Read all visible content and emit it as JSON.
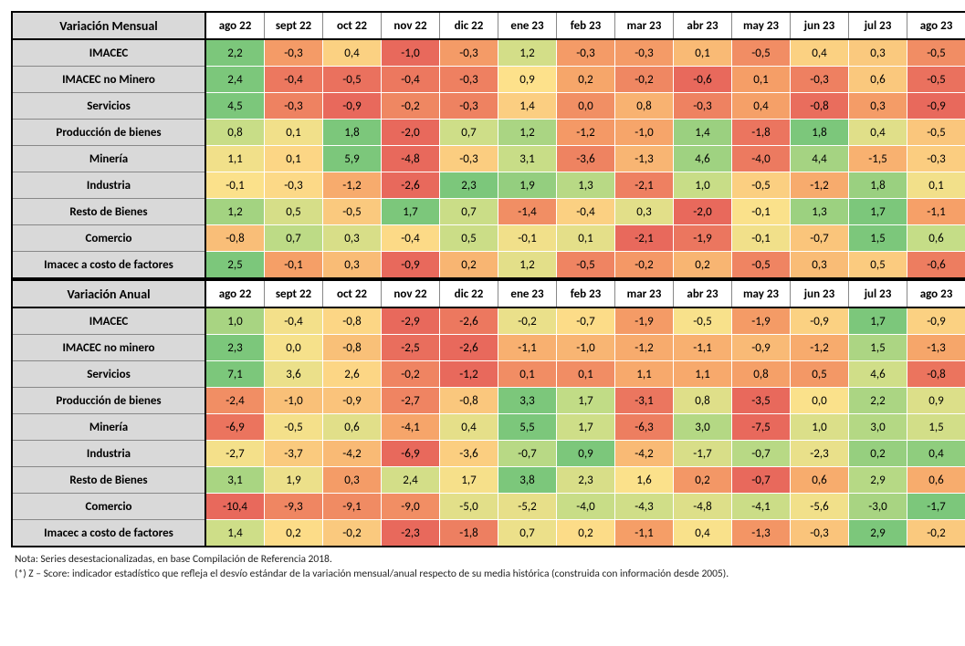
{
  "columns": [
    "ago 22",
    "sept 22",
    "oct 22",
    "nov 22",
    "dic 22",
    "ene 23",
    "feb 23",
    "mar 23",
    "abr 23",
    "may 23",
    "jun 23",
    "jul 23",
    "ago 23"
  ],
  "color_scale": {
    "stops": [
      {
        "t": 0.0,
        "c": "#e8695c"
      },
      {
        "t": 0.25,
        "c": "#f6a268"
      },
      {
        "t": 0.5,
        "c": "#fde18b"
      },
      {
        "t": 0.75,
        "c": "#c5dd87"
      },
      {
        "t": 1.0,
        "c": "#7cc77b"
      }
    ]
  },
  "tables": [
    {
      "title": "Variación Mensual",
      "rows": [
        {
          "label": "IMACEC",
          "v": [
            2.2,
            -0.3,
            0.4,
            -1.0,
            -0.3,
            1.2,
            -0.3,
            -0.3,
            0.1,
            -0.5,
            0.4,
            0.3,
            -0.5
          ]
        },
        {
          "label": "IMACEC no Minero",
          "v": [
            2.4,
            -0.4,
            -0.5,
            -0.4,
            -0.3,
            0.9,
            0.2,
            -0.2,
            -0.6,
            0.1,
            -0.3,
            0.6,
            -0.5
          ]
        },
        {
          "label": "Servicios",
          "v": [
            4.5,
            -0.3,
            -0.9,
            -0.2,
            -0.3,
            1.4,
            0.0,
            0.8,
            -0.3,
            0.4,
            -0.8,
            0.3,
            -0.9
          ]
        },
        {
          "label": "Producción de bienes",
          "v": [
            0.8,
            0.1,
            1.8,
            -2.0,
            0.7,
            1.2,
            -1.2,
            -1.0,
            1.4,
            -1.8,
            1.8,
            0.4,
            -0.5
          ]
        },
        {
          "label": "Minería",
          "v": [
            1.1,
            0.1,
            5.9,
            -4.8,
            -0.3,
            3.1,
            -3.6,
            -1.3,
            4.6,
            -4.0,
            4.4,
            -1.5,
            -0.3
          ]
        },
        {
          "label": "Industria",
          "v": [
            -0.1,
            -0.3,
            -1.2,
            -2.6,
            2.3,
            1.9,
            1.3,
            -2.1,
            1.0,
            -0.5,
            -1.2,
            1.8,
            0.1
          ]
        },
        {
          "label": "Resto de Bienes",
          "v": [
            1.2,
            0.5,
            -0.5,
            1.7,
            0.7,
            -1.4,
            -0.4,
            0.3,
            -2.0,
            -0.1,
            1.3,
            1.7,
            -1.1
          ]
        },
        {
          "label": "Comercio",
          "v": [
            -0.8,
            0.7,
            0.3,
            -0.4,
            0.5,
            -0.1,
            0.1,
            -2.1,
            -1.9,
            -0.1,
            -0.7,
            1.5,
            0.6
          ]
        },
        {
          "label": "Imacec a costo de factores",
          "v": [
            2.5,
            -0.1,
            0.3,
            -0.9,
            0.2,
            1.2,
            -0.5,
            -0.2,
            0.2,
            -0.5,
            0.3,
            0.5,
            -0.6
          ]
        }
      ]
    },
    {
      "title": "Variación Anual",
      "rows": [
        {
          "label": "IMACEC",
          "v": [
            1.0,
            -0.4,
            -0.8,
            -2.9,
            -2.6,
            -0.2,
            -0.7,
            -1.9,
            -0.5,
            -1.9,
            -0.9,
            1.7,
            -0.9
          ]
        },
        {
          "label": "IMACEC no minero",
          "v": [
            2.3,
            0.0,
            -0.8,
            -2.5,
            -2.6,
            -1.1,
            -1.0,
            -1.2,
            -1.1,
            -0.9,
            -1.2,
            1.5,
            -1.3
          ]
        },
        {
          "label": "Servicios",
          "v": [
            7.1,
            3.6,
            2.6,
            -0.2,
            -1.2,
            0.1,
            0.1,
            1.1,
            1.1,
            0.8,
            0.5,
            4.6,
            -0.8
          ]
        },
        {
          "label": "Producción de bienes",
          "v": [
            -2.4,
            -1.0,
            -0.9,
            -2.7,
            -0.8,
            3.3,
            1.7,
            -3.1,
            0.8,
            -3.5,
            0.0,
            2.2,
            0.9
          ]
        },
        {
          "label": "Minería",
          "v": [
            -6.9,
            -0.5,
            0.6,
            -4.1,
            0.4,
            5.5,
            1.7,
            -6.3,
            3.0,
            -7.5,
            1.0,
            3.0,
            1.5
          ]
        },
        {
          "label": "Industria",
          "v": [
            -2.7,
            -3.7,
            -4.2,
            -6.9,
            -3.6,
            -0.7,
            0.9,
            -4.2,
            -1.7,
            -0.7,
            -2.3,
            0.2,
            0.4
          ]
        },
        {
          "label": "Resto de Bienes",
          "v": [
            3.1,
            1.9,
            0.3,
            2.4,
            1.7,
            3.8,
            2.3,
            1.6,
            0.2,
            -0.7,
            0.6,
            2.9,
            0.6
          ]
        },
        {
          "label": "Comercio",
          "v": [
            -10.4,
            -9.3,
            -9.1,
            -9.0,
            -5.0,
            -5.2,
            -4.0,
            -4.3,
            -4.8,
            -4.1,
            -5.6,
            -3.0,
            -1.7
          ]
        },
        {
          "label": "Imacec a costo de factores",
          "v": [
            1.4,
            0.2,
            -0.2,
            -2.3,
            -1.8,
            0.7,
            0.2,
            -1.1,
            0.4,
            -1.3,
            -0.3,
            2.9,
            -0.2
          ]
        }
      ]
    }
  ],
  "notes": [
    "Nota: Series desestacionalizadas, en base Compilación de  Referencia 2018.",
    "(*) Z – Score: indicador estadístico que refleja el desvío estándar de la variación mensual/anual respecto de su media histórica (construida con información desde 2005)."
  ]
}
